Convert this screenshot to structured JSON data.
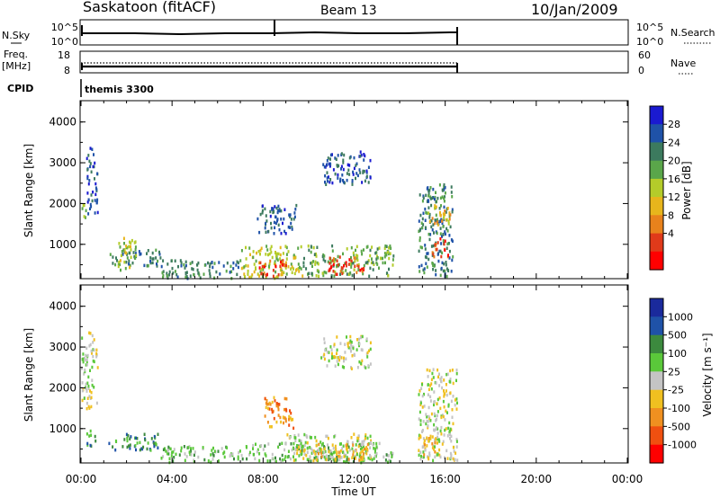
{
  "header": {
    "station": "Saskatoon (fitACF)",
    "beam": "Beam 13",
    "date": "10/Jan/2009"
  },
  "top_panels": {
    "nsky_label": "N.Sky",
    "nsky_ticks": [
      "10^5",
      "10^0"
    ],
    "nsearch_label": "N.Search",
    "nsearch_ticks": [
      "10^5",
      "10^0"
    ],
    "freq_label": "Freq.",
    "freq_unit": "[MHz]",
    "freq_ticks": [
      "18",
      "8"
    ],
    "nave_label": "Nave",
    "nave_ticks": [
      "60",
      "0"
    ],
    "cpid_label": "CPID",
    "cpid_value": "themis 3300"
  },
  "chart_data": [
    {
      "type": "heatmap",
      "name": "power",
      "ylabel": "Slant Range [km]",
      "yticks": [
        "4000",
        "3000",
        "2000",
        "1000"
      ],
      "ylim": [
        180,
        4500
      ],
      "colorbar_label": "Power [dB]",
      "colorbar_ticks": [
        "28",
        "24",
        "20",
        "16",
        "12",
        "8",
        "4"
      ],
      "colors": [
        "#1a1ad0",
        "#1f52a8",
        "#3c7a5e",
        "#5aa64a",
        "#b4cc2a",
        "#e7b51c",
        "#e8821c",
        "#e03a1a",
        "#ff0000"
      ],
      "regions": [
        {
          "t": [
            0.0,
            0.2
          ],
          "r": [
            1500,
            2000
          ],
          "level": 3
        },
        {
          "t": [
            0.2,
            0.7
          ],
          "r": [
            1700,
            3400
          ],
          "level": 1
        },
        {
          "t": [
            1.2,
            3.5
          ],
          "r": [
            500,
            900
          ],
          "level": 2
        },
        {
          "t": [
            1.6,
            2.4
          ],
          "r": [
            400,
            1200
          ],
          "level": 4
        },
        {
          "t": [
            3.5,
            7.0
          ],
          "r": [
            200,
            650
          ],
          "level": 2
        },
        {
          "t": [
            7.0,
            9.7
          ],
          "r": [
            200,
            1000
          ],
          "level": 4
        },
        {
          "t": [
            7.8,
            9.0
          ],
          "r": [
            250,
            700
          ],
          "level": 7
        },
        {
          "t": [
            7.7,
            9.5
          ],
          "r": [
            1300,
            2000
          ],
          "level": 1
        },
        {
          "t": [
            9.7,
            13.7
          ],
          "r": [
            250,
            1000
          ],
          "level": 3
        },
        {
          "t": [
            10.8,
            12.4
          ],
          "r": [
            300,
            750
          ],
          "level": 7
        },
        {
          "t": [
            10.5,
            12.7
          ],
          "r": [
            2500,
            3300
          ],
          "level": 1
        },
        {
          "t": [
            14.8,
            16.3
          ],
          "r": [
            250,
            2500
          ],
          "level": 2
        },
        {
          "t": [
            15.2,
            16.2
          ],
          "r": [
            1500,
            2000
          ],
          "level": 5
        },
        {
          "t": [
            15.4,
            16.1
          ],
          "r": [
            700,
            1200
          ],
          "level": 7
        }
      ]
    },
    {
      "type": "heatmap",
      "name": "velocity",
      "ylabel": "Slant Range [km]",
      "yticks": [
        "4000",
        "3000",
        "2000",
        "1000"
      ],
      "ylim": [
        180,
        4500
      ],
      "colorbar_label": "Velocity [m s⁻¹]",
      "colorbar_ticks": [
        "1000",
        "500",
        "100",
        "25",
        "-25",
        "-100",
        "-500",
        "-1000"
      ],
      "colors": [
        "#1a2a9c",
        "#1f52a8",
        "#3c8a3e",
        "#5ac83a",
        "#c4c4c4",
        "#f0c020",
        "#f09020",
        "#f05010",
        "#ff0000"
      ],
      "regions": [
        {
          "t": [
            0.0,
            0.7
          ],
          "r": [
            1500,
            3400
          ],
          "level": 4
        },
        {
          "t": [
            0.2,
            0.6
          ],
          "r": [
            500,
            1000
          ],
          "level": 2
        },
        {
          "t": [
            1.2,
            3.5
          ],
          "r": [
            500,
            900
          ],
          "level": 2
        },
        {
          "t": [
            3.5,
            7.5
          ],
          "r": [
            200,
            600
          ],
          "level": 3
        },
        {
          "t": [
            7.5,
            13.7
          ],
          "r": [
            200,
            700
          ],
          "level": 3
        },
        {
          "t": [
            9.0,
            13.0
          ],
          "r": [
            250,
            900
          ],
          "level": 4
        },
        {
          "t": [
            10.3,
            12.6
          ],
          "r": [
            250,
            650
          ],
          "level": 5
        },
        {
          "t": [
            8.0,
            9.3
          ],
          "r": [
            1000,
            1800
          ],
          "level": 6
        },
        {
          "t": [
            10.5,
            12.7
          ],
          "r": [
            2500,
            3300
          ],
          "level": 4
        },
        {
          "t": [
            14.8,
            16.5
          ],
          "r": [
            250,
            2500
          ],
          "level": 4
        },
        {
          "t": [
            15.0,
            15.6
          ],
          "r": [
            250,
            900
          ],
          "level": 5
        }
      ]
    }
  ],
  "xaxis": {
    "title": "Time UT",
    "ticks": [
      "00:00",
      "04:00",
      "08:00",
      "12:00",
      "16:00",
      "20:00",
      "00:00"
    ]
  }
}
